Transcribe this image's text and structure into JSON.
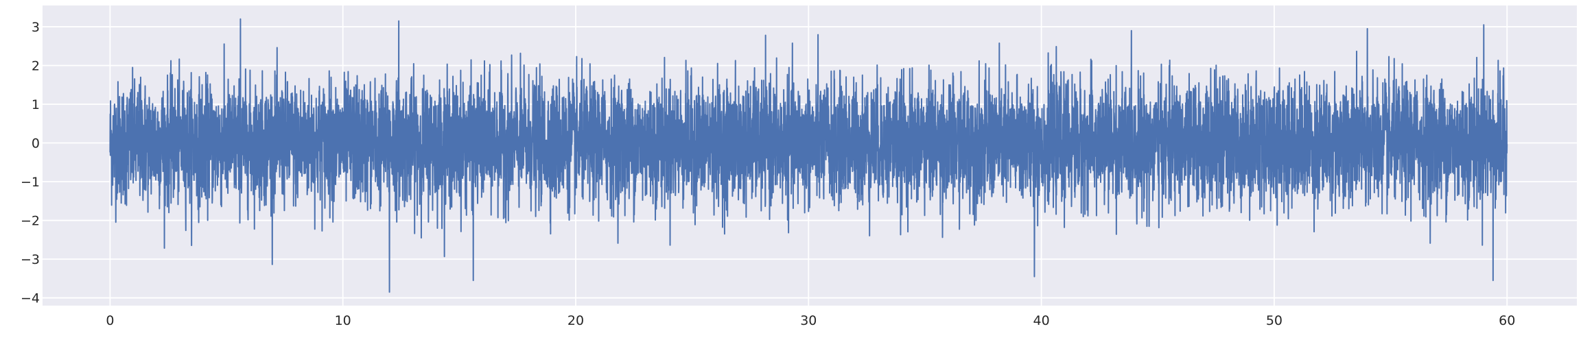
{
  "chart_data": {
    "type": "line",
    "title": "",
    "xlabel": "",
    "ylabel": "",
    "xlim": [
      -2.9,
      63.0
    ],
    "ylim": [
      -4.2,
      3.55
    ],
    "x_ticks": [
      0,
      10,
      20,
      30,
      40,
      50,
      60
    ],
    "y_ticks": [
      -4,
      -3,
      -2,
      -1,
      0,
      1,
      2,
      3
    ],
    "x_tick_labels": [
      "0",
      "10",
      "20",
      "30",
      "40",
      "50",
      "60"
    ],
    "y_tick_labels": [
      "−4",
      "−3",
      "−2",
      "−1",
      "0",
      "1",
      "2",
      "3"
    ],
    "grid": true,
    "legend": "none",
    "series": [
      {
        "color": "#4c72b0",
        "x_range": [
          0,
          60
        ],
        "values_summary": "dense zero-mean noise (~std 0.8) sampled over 0–60, extremes ≈ +3.2 / −3.9",
        "peaks": [
          {
            "x": 5.6,
            "y": 3.2
          },
          {
            "x": 12.4,
            "y": 3.15
          },
          {
            "x": 59.0,
            "y": 3.05
          },
          {
            "x": 54.0,
            "y": 2.95
          },
          {
            "x": 12.0,
            "y": -3.85
          },
          {
            "x": 15.6,
            "y": -3.55
          },
          {
            "x": 59.4,
            "y": -3.55
          },
          {
            "x": 39.7,
            "y": -3.45
          }
        ]
      }
    ]
  }
}
